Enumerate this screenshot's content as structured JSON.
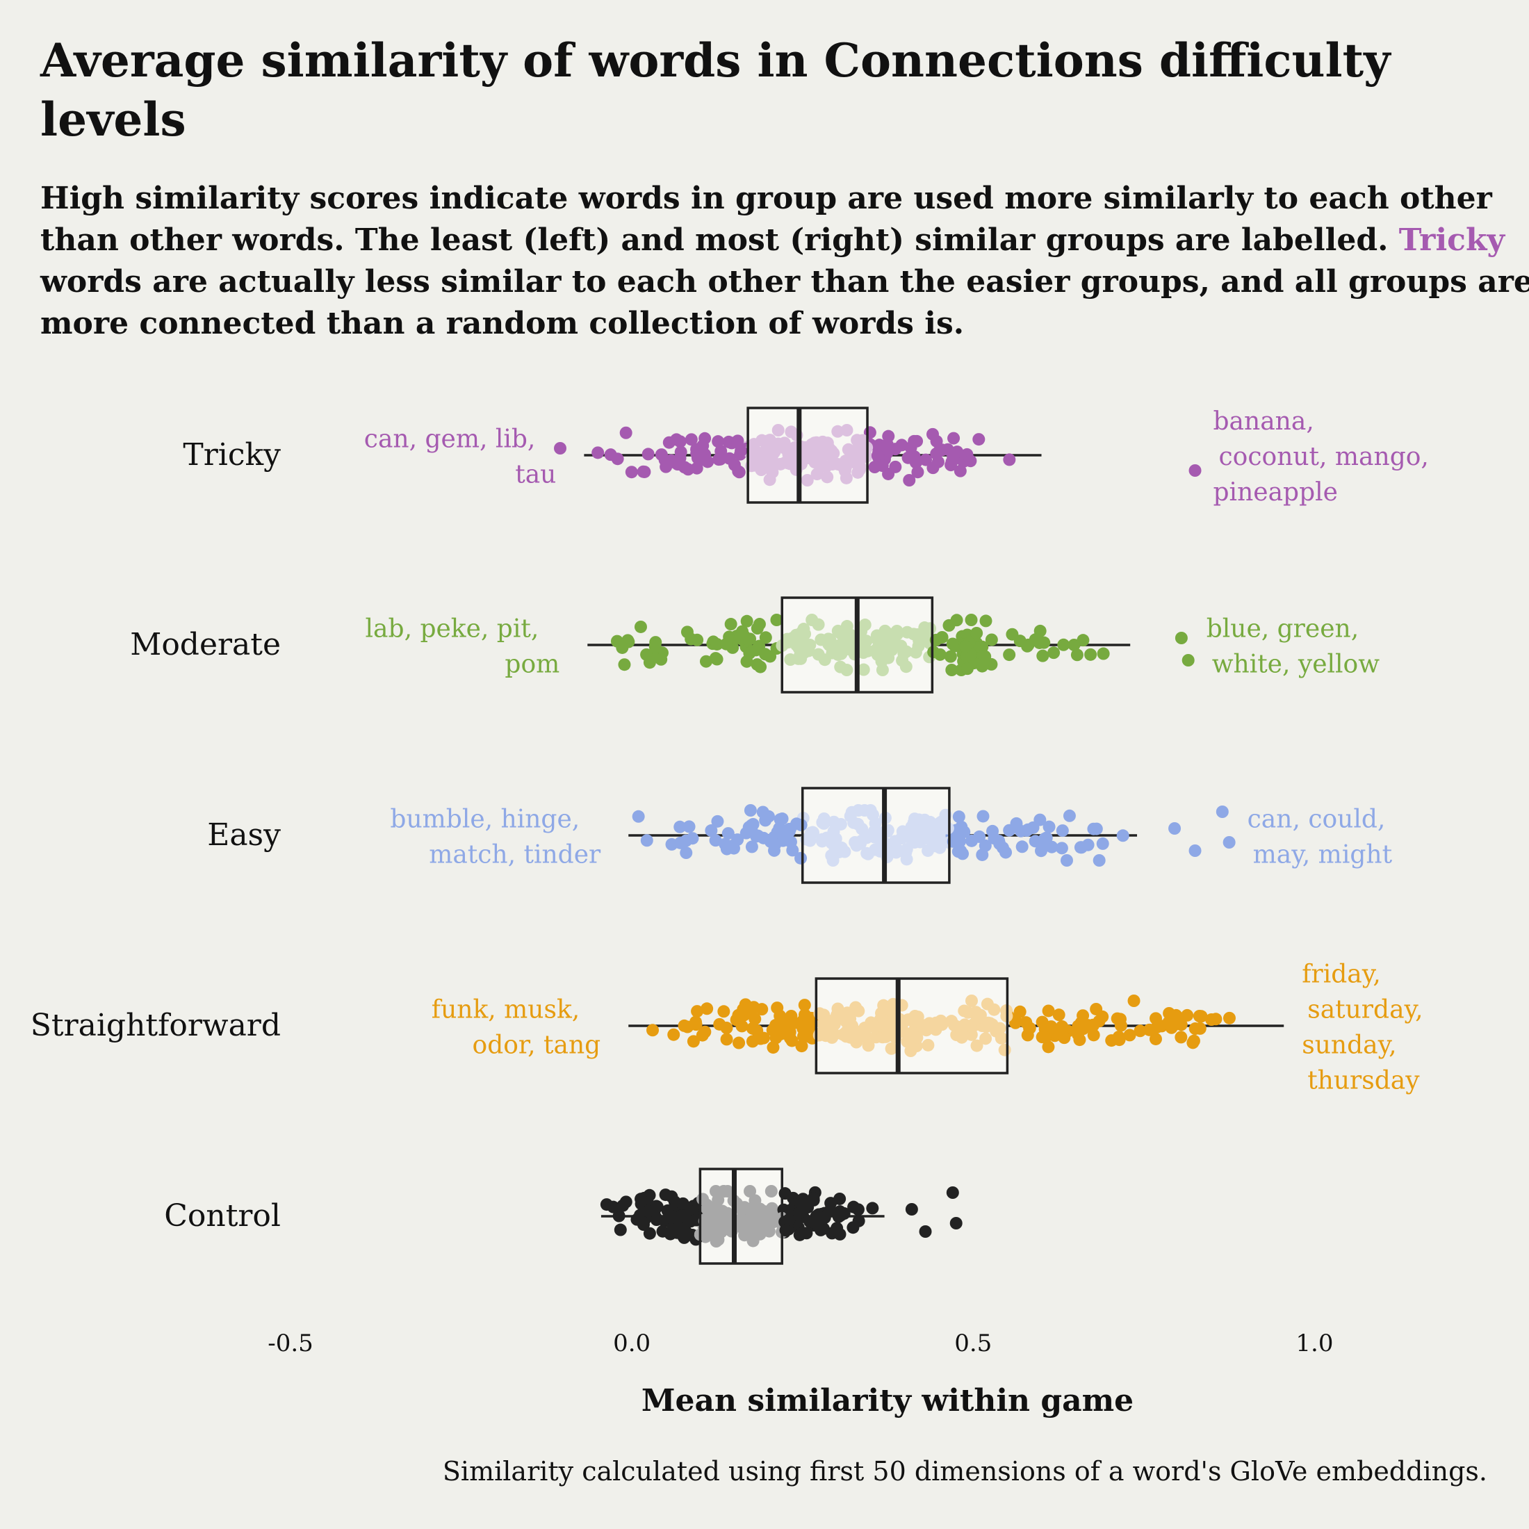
{
  "chart_data": {
    "type": "boxplot",
    "title": "Average similarity of words in Connections difficulty levels",
    "subtitle_parts": [
      "High similarity scores indicate words in group are used more similarly to each other than other words. The least (left) and most (right) similar groups are labelled.",
      "Tricky",
      "words are actually less similar to each other than the easier groups, and all groups are more connected than a random collection of words is."
    ],
    "xlabel": "Mean similarity within game",
    "ylabel": "",
    "caption": "Similarity calculated using first 50 dimensions of a word's GloVe embeddings.",
    "xlim": [
      -0.5,
      1.25
    ],
    "x_ticks": [
      -0.5,
      0.0,
      0.5,
      1.0
    ],
    "x_tick_labels": [
      "-0.5",
      "0.0",
      "0.5",
      "1.0"
    ],
    "grid": false,
    "legend": "none",
    "series": [
      {
        "name": "Tricky",
        "color": "#a55ab0",
        "light_color": "#dcc0df",
        "box": {
          "whisker_low": -0.07,
          "q1": 0.17,
          "median": 0.245,
          "q3": 0.345,
          "whisker_high": 0.6
        },
        "outliers": [
          -0.105,
          0.825
        ],
        "points_range": [
          -0.07,
          0.6
        ],
        "point_count": 200,
        "label_low": [
          "can, gem, lib,",
          "tau"
        ],
        "label_high": [
          "banana,",
          "coconut, mango,",
          "pineapple"
        ]
      },
      {
        "name": "Moderate",
        "color": "#77aa3f",
        "light_color": "#c8deb0",
        "box": {
          "whisker_low": -0.065,
          "q1": 0.22,
          "median": 0.33,
          "q3": 0.44,
          "whisker_high": 0.73
        },
        "outliers": [
          0.805,
          0.815
        ],
        "points_range": [
          -0.065,
          0.74
        ],
        "point_count": 200,
        "label_low": [
          "lab, peke, pit,",
          "pom"
        ],
        "label_high": [
          "blue, green,",
          "white, yellow"
        ]
      },
      {
        "name": "Easy",
        "color": "#8ea8e6",
        "light_color": "#d4ddf3",
        "box": {
          "whisker_low": -0.005,
          "q1": 0.25,
          "median": 0.37,
          "q3": 0.465,
          "whisker_high": 0.74
        },
        "outliers": [
          0.795,
          0.825,
          0.865,
          0.875
        ],
        "points_range": [
          -0.005,
          0.74
        ],
        "point_count": 200,
        "label_low": [
          "bumble, hinge,",
          "match, tinder"
        ],
        "label_high": [
          "can, could,",
          "may, might"
        ]
      },
      {
        "name": "Straightforward",
        "color": "#e69c10",
        "light_color": "#f5d69f",
        "box": {
          "whisker_low": -0.005,
          "q1": 0.27,
          "median": 0.39,
          "q3": 0.55,
          "whisker_high": 0.955
        },
        "outliers": [],
        "points_range": [
          -0.005,
          0.955
        ],
        "point_count": 260,
        "label_low": [
          "funk, musk,",
          "odor, tang"
        ],
        "label_high": [
          "friday,",
          "saturday,",
          "sunday,",
          "thursday"
        ]
      },
      {
        "name": "Control",
        "color": "#222222",
        "light_color": "#a8a8a8",
        "box": {
          "whisker_low": -0.045,
          "q1": 0.1,
          "median": 0.15,
          "q3": 0.22,
          "whisker_high": 0.37
        },
        "outliers": [
          0.41,
          0.43,
          0.47,
          0.475
        ],
        "points_range": [
          -0.045,
          0.39
        ],
        "point_count": 220,
        "label_low": [],
        "label_high": []
      }
    ]
  }
}
